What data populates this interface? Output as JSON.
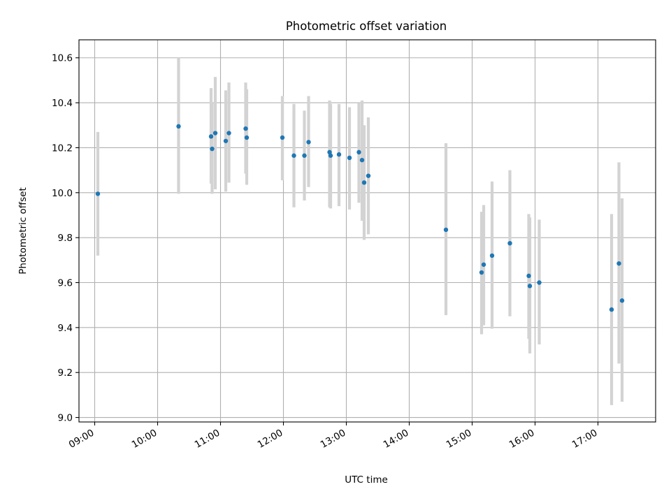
{
  "chart_data": {
    "type": "scatter",
    "title": "Photometric offset variation",
    "xlabel": "UTC time",
    "ylabel": "Photometric offset",
    "x_tick_labels": [
      "09:00",
      "10:00",
      "11:00",
      "12:00",
      "13:00",
      "14:00",
      "15:00",
      "16:00",
      "17:00"
    ],
    "y_tick_labels": [
      "9.0",
      "9.2",
      "9.4",
      "9.6",
      "9.8",
      "10.0",
      "10.2",
      "10.4",
      "10.6"
    ],
    "y_ticks": [
      9.0,
      9.2,
      9.4,
      9.6,
      9.8,
      10.0,
      10.2,
      10.4,
      10.6
    ],
    "xlim": [
      "08:45",
      "17:55"
    ],
    "ylim": [
      8.98,
      10.68
    ],
    "grid": true,
    "marker_color": "#1f77b4",
    "errorbar_color": "#d3d3d3",
    "points": [
      {
        "x": "09:03",
        "y": 9.995,
        "ylow": 9.72,
        "yhigh": 10.27
      },
      {
        "x": "10:20",
        "y": 10.295,
        "ylow": 9.995,
        "yhigh": 10.6
      },
      {
        "x": "10:51",
        "y": 10.25,
        "ylow": 10.04,
        "yhigh": 10.465
      },
      {
        "x": "10:52",
        "y": 10.195,
        "ylow": 9.995,
        "yhigh": 10.4
      },
      {
        "x": "10:55",
        "y": 10.265,
        "ylow": 10.015,
        "yhigh": 10.515
      },
      {
        "x": "11:05",
        "y": 10.23,
        "ylow": 10.005,
        "yhigh": 10.455
      },
      {
        "x": "11:08",
        "y": 10.265,
        "ylow": 10.045,
        "yhigh": 10.49
      },
      {
        "x": "11:24",
        "y": 10.285,
        "ylow": 10.085,
        "yhigh": 10.49
      },
      {
        "x": "11:25",
        "y": 10.245,
        "ylow": 10.035,
        "yhigh": 10.46
      },
      {
        "x": "11:59",
        "y": 10.245,
        "ylow": 10.055,
        "yhigh": 10.43
      },
      {
        "x": "12:10",
        "y": 10.165,
        "ylow": 9.935,
        "yhigh": 10.395
      },
      {
        "x": "12:20",
        "y": 10.165,
        "ylow": 9.965,
        "yhigh": 10.365
      },
      {
        "x": "12:24",
        "y": 10.225,
        "ylow": 10.025,
        "yhigh": 10.43
      },
      {
        "x": "12:44",
        "y": 10.18,
        "ylow": 9.935,
        "yhigh": 10.41
      },
      {
        "x": "12:45",
        "y": 10.165,
        "ylow": 9.93,
        "yhigh": 10.395
      },
      {
        "x": "12:53",
        "y": 10.17,
        "ylow": 9.94,
        "yhigh": 10.395
      },
      {
        "x": "13:03",
        "y": 10.155,
        "ylow": 9.925,
        "yhigh": 10.38
      },
      {
        "x": "13:12",
        "y": 10.18,
        "ylow": 9.955,
        "yhigh": 10.4
      },
      {
        "x": "13:15",
        "y": 10.145,
        "ylow": 9.875,
        "yhigh": 10.41
      },
      {
        "x": "13:17",
        "y": 10.045,
        "ylow": 9.79,
        "yhigh": 10.3
      },
      {
        "x": "13:21",
        "y": 10.075,
        "ylow": 9.815,
        "yhigh": 10.335
      },
      {
        "x": "14:35",
        "y": 9.835,
        "ylow": 9.455,
        "yhigh": 10.22
      },
      {
        "x": "15:09",
        "y": 9.645,
        "ylow": 9.37,
        "yhigh": 9.915
      },
      {
        "x": "15:11",
        "y": 9.68,
        "ylow": 9.41,
        "yhigh": 9.945
      },
      {
        "x": "15:19",
        "y": 9.72,
        "ylow": 9.395,
        "yhigh": 10.05
      },
      {
        "x": "15:36",
        "y": 9.775,
        "ylow": 9.45,
        "yhigh": 10.1
      },
      {
        "x": "15:54",
        "y": 9.63,
        "ylow": 9.35,
        "yhigh": 9.905
      },
      {
        "x": "15:55",
        "y": 9.585,
        "ylow": 9.285,
        "yhigh": 9.89
      },
      {
        "x": "16:04",
        "y": 9.6,
        "ylow": 9.325,
        "yhigh": 9.88
      },
      {
        "x": "17:13",
        "y": 9.48,
        "ylow": 9.055,
        "yhigh": 9.905
      },
      {
        "x": "17:20",
        "y": 9.685,
        "ylow": 9.24,
        "yhigh": 10.135
      },
      {
        "x": "17:23",
        "y": 9.52,
        "ylow": 9.07,
        "yhigh": 9.975
      }
    ]
  }
}
